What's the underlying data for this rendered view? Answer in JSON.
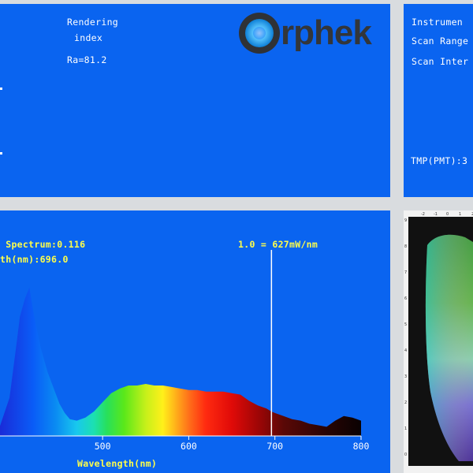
{
  "rendering_panel": {
    "title_line1": "Rendering",
    "title_line2": "index",
    "ra_value": "Ra=81.2"
  },
  "logo": {
    "text": "rphek"
  },
  "instrument_panel": {
    "line1": "Instrumen",
    "line2": "Scan Range",
    "line3": "Scan Inter",
    "tmp": "TMP(PMT):3"
  },
  "spectrum_panel": {
    "info_line1": " Spectrum:0.116",
    "info_line2": "th(nm):696.0",
    "scale_label": "1.0 = 627mW/nm",
    "x_axis_label": "Wavelength(nm)",
    "x_ticks": [
      "500",
      "600",
      "700",
      "800"
    ]
  },
  "chart_data": {
    "type": "area",
    "xlabel": "Wavelength(nm)",
    "ylabel": "",
    "xlim": [
      380,
      800
    ],
    "ylim": [
      0,
      1
    ],
    "x": [
      380,
      392,
      400,
      404,
      410,
      415,
      420,
      428,
      436,
      444,
      450,
      456,
      462,
      470,
      480,
      490,
      500,
      510,
      520,
      530,
      540,
      550,
      560,
      570,
      580,
      590,
      600,
      610,
      620,
      630,
      640,
      650,
      660,
      670,
      680,
      690,
      696,
      700,
      710,
      720,
      730,
      740,
      750,
      760,
      770,
      780,
      790,
      800
    ],
    "series": [
      {
        "values": [
          0.05,
          0.25,
          0.6,
          0.78,
          0.9,
          0.97,
          0.8,
          0.58,
          0.42,
          0.3,
          0.21,
          0.15,
          0.11,
          0.1,
          0.12,
          0.16,
          0.22,
          0.28,
          0.31,
          0.33,
          0.33,
          0.34,
          0.33,
          0.33,
          0.32,
          0.31,
          0.3,
          0.3,
          0.29,
          0.29,
          0.29,
          0.28,
          0.27,
          0.23,
          0.2,
          0.18,
          0.16,
          0.15,
          0.13,
          0.11,
          0.1,
          0.08,
          0.07,
          0.06,
          0.1,
          0.13,
          0.12,
          0.1
        ]
      }
    ],
    "marker_wavelength": 696.0,
    "grid": false
  },
  "cie_panel": {
    "top_ticks": [
      "-2",
      "-1",
      "0",
      "1",
      "2"
    ],
    "left_ticks": [
      "9",
      "8",
      "7",
      "6",
      "5",
      "4",
      "3",
      "2",
      "1",
      "0"
    ]
  }
}
